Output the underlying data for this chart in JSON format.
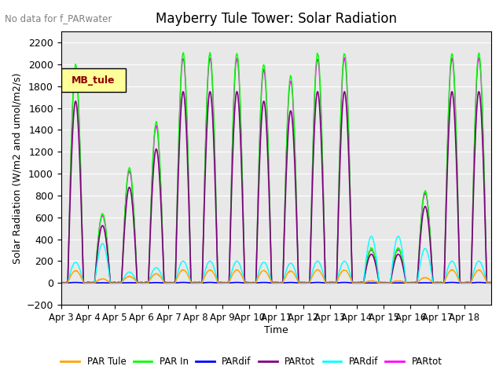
{
  "title": "Mayberry Tule Tower: Solar Radiation",
  "no_data_text": "No data for f_PARwater",
  "ylabel": "Solar Radiation (W/m2 and umol/m2/s)",
  "xlabel": "Time",
  "ylim": [
    -200,
    2300
  ],
  "yticks": [
    -200,
    0,
    200,
    400,
    600,
    800,
    1000,
    1200,
    1400,
    1600,
    1800,
    2000,
    2200
  ],
  "x_tick_labels": [
    "Apr 3",
    "Apr 4",
    "Apr 5",
    "Apr 6",
    "Apr 7",
    "Apr 8",
    "Apr 9",
    "Apr 10",
    "Apr 11",
    "Apr 12",
    "Apr 13",
    "Apr 14",
    "Apr 15",
    "Apr 16",
    "Apr 17",
    "Apr 18"
  ],
  "legend_labels": [
    "PAR Tule",
    "PAR In",
    "PARdif",
    "PARtot",
    "PARdif",
    "PARtot"
  ],
  "legend_colors": [
    "#FFA500",
    "#00FF00",
    "#0000FF",
    "#800080",
    "#00FFFF",
    "#FF00FF"
  ],
  "line_colors": {
    "PAR_Tule": "#FFA500",
    "PAR_In": "#00FF00",
    "PARdif_blue": "#0000FF",
    "PARtot_purple": "#800080",
    "PARdif_cyan": "#00FFFF",
    "PARtot_magenta": "#FF00FF"
  },
  "legend_box_color": "#FFFF99",
  "legend_box_text": "MB_tule",
  "legend_box_text_color": "#8B0000",
  "bg_color": "#E8E8E8",
  "n_days": 16,
  "cloud_PAR_in": [
    0.95,
    0.3,
    0.5,
    0.7,
    1.0,
    1.0,
    1.0,
    0.95,
    0.9,
    1.0,
    1.0,
    0.15,
    0.15,
    0.4,
    1.0,
    1.0
  ],
  "peak_PAR_in": 2100
}
